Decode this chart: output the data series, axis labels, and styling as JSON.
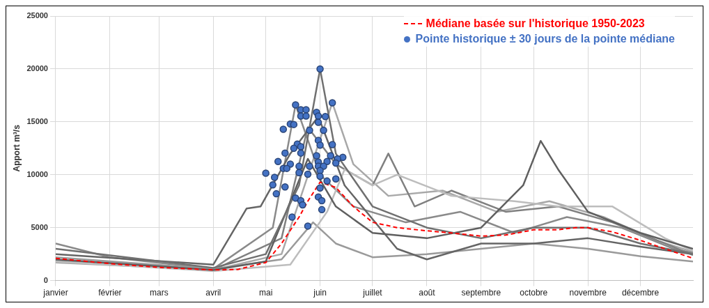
{
  "chart_data": {
    "type": "line",
    "ylabel": "Apport m³/s",
    "xlim": [
      "--01-01",
      "--12-31"
    ],
    "xticks": [
      {
        "value": "--01-01",
        "label": "janvier"
      },
      {
        "value": "--02-01",
        "label": "février"
      },
      {
        "value": "--03-01",
        "label": "mars"
      },
      {
        "value": "--04-01",
        "label": "avril"
      },
      {
        "value": "--05-01",
        "label": "mai"
      },
      {
        "value": "--06-01",
        "label": "juin"
      },
      {
        "value": "--07-01",
        "label": "juillet"
      },
      {
        "value": "--08-01",
        "label": "août"
      },
      {
        "value": "--09-01",
        "label": "septembre"
      },
      {
        "value": "--10-01",
        "label": "octobre"
      },
      {
        "value": "--11-01",
        "label": "novembre"
      },
      {
        "value": "--12-01",
        "label": "décembre"
      }
    ],
    "ylim": [
      0,
      25000
    ],
    "yticks": [
      0,
      5000,
      10000,
      15000,
      20000,
      25000
    ],
    "grid": true,
    "legend": "top right",
    "series": [
      {
        "type": "line",
        "color": "#707070",
        "marker": "none",
        "x": [
          "--01-01",
          "--04-01",
          "--05-01",
          "--05-20",
          "--06-01",
          "--06-10",
          "--07-01",
          "--08-01",
          "--09-01",
          "--10-01",
          "--11-01",
          "--12-01",
          "--12-31"
        ],
        "values": [
          3000,
          1200,
          2500,
          9000,
          20000,
          12000,
          7000,
          5000,
          4000,
          5000,
          5000,
          3500,
          2500
        ]
      },
      {
        "type": "line",
        "color": "#5f5f5f",
        "marker": "none",
        "x": [
          "--01-01",
          "--04-01",
          "--05-01",
          "--05-25",
          "--06-10",
          "--07-01",
          "--08-01",
          "--09-01",
          "--09-25",
          "--10-05",
          "--10-15",
          "--11-01",
          "--12-01",
          "--12-31"
        ],
        "values": [
          2000,
          1000,
          1800,
          11500,
          7000,
          4500,
          4000,
          5000,
          9000,
          13200,
          10500,
          6500,
          4500,
          3000
        ]
      },
      {
        "type": "line",
        "color": "#656565",
        "marker": "none",
        "x": [
          "--01-01",
          "--04-01",
          "--04-20",
          "--04-28",
          "--05-15",
          "--05-31",
          "--06-15",
          "--07-15",
          "--08-01",
          "--09-01",
          "--10-01",
          "--11-01",
          "--12-01",
          "--12-31"
        ],
        "values": [
          2500,
          1500,
          6800,
          7000,
          12000,
          15500,
          9000,
          3000,
          2000,
          3500,
          3500,
          4000,
          3200,
          2500
        ]
      },
      {
        "type": "line",
        "color": "#bdbdbd",
        "marker": "none",
        "x": [
          "--01-01",
          "--04-01",
          "--05-15",
          "--06-05",
          "--06-15",
          "--07-01",
          "--07-15",
          "--08-15",
          "--09-20",
          "--10-15",
          "--11-15",
          "--12-15",
          "--12-31"
        ],
        "values": [
          1800,
          900,
          1500,
          6500,
          10500,
          9000,
          10000,
          8000,
          7500,
          7000,
          7000,
          4000,
          2800
        ]
      },
      {
        "type": "line",
        "color": "#9a9a9a",
        "marker": "none",
        "x": [
          "--01-01",
          "--04-01",
          "--05-10",
          "--05-28",
          "--06-10",
          "--07-01",
          "--08-01",
          "--09-01",
          "--10-01",
          "--11-01",
          "--12-01",
          "--12-31"
        ],
        "values": [
          2200,
          1100,
          2000,
          5500,
          3500,
          2200,
          2500,
          3000,
          3500,
          3000,
          2300,
          1800
        ]
      },
      {
        "type": "line",
        "color": "#808080",
        "marker": "none",
        "x": [
          "--01-01",
          "--04-01",
          "--05-10",
          "--05-25",
          "--06-10",
          "--07-01",
          "--07-10",
          "--07-25",
          "--08-15",
          "--09-15",
          "--10-15",
          "--11-15",
          "--12-15",
          "--12-31"
        ],
        "values": [
          1900,
          1000,
          4000,
          14500,
          11000,
          9000,
          12000,
          7000,
          8500,
          6500,
          7000,
          5500,
          3500,
          2400
        ]
      },
      {
        "type": "line",
        "color": "#8a8a8a",
        "marker": "none",
        "x": [
          "--01-01",
          "--02-01",
          "--04-01",
          "--05-05",
          "--05-18",
          "--06-01",
          "--06-20",
          "--07-20",
          "--08-20",
          "--09-20",
          "--10-20",
          "--11-20",
          "--12-20",
          "--12-31"
        ],
        "values": [
          3500,
          2200,
          1100,
          5000,
          16600,
          10000,
          7000,
          5500,
          6500,
          4500,
          6000,
          5000,
          3000,
          2600
        ]
      },
      {
        "type": "line",
        "color": "#a8a8a8",
        "marker": "none",
        "x": [
          "--01-01",
          "--04-01",
          "--05-10",
          "--06-08",
          "--06-20",
          "--07-10",
          "--08-10",
          "--09-10",
          "--10-10",
          "--11-10",
          "--12-10",
          "--12-31"
        ],
        "values": [
          1700,
          1000,
          2500,
          16800,
          11000,
          8000,
          8500,
          6500,
          7500,
          6000,
          3800,
          2700
        ]
      },
      {
        "type": "line",
        "name": "Médiane basée sur l'historique 1950-2023",
        "color": "#ff0000",
        "marker": "none",
        "line_style": "dashed",
        "x": [
          "--01-01",
          "--02-01",
          "--03-01",
          "--04-01",
          "--04-15",
          "--05-01",
          "--05-10",
          "--05-20",
          "--05-25",
          "--06-01",
          "--06-10",
          "--06-20",
          "--07-01",
          "--07-15",
          "--08-01",
          "--08-15",
          "--09-01",
          "--09-15",
          "--09-25",
          "--10-01",
          "--10-15",
          "--10-25",
          "--11-01",
          "--11-15",
          "--12-01",
          "--12-15",
          "--12-31"
        ],
        "values": [
          2100,
          1600,
          1250,
          1000,
          1050,
          1700,
          3500,
          6000,
          7500,
          9300,
          8800,
          7000,
          5500,
          5000,
          4700,
          4500,
          4200,
          4300,
          4600,
          4800,
          4800,
          5000,
          5000,
          4600,
          3800,
          3000,
          2100
        ]
      },
      {
        "type": "scatter",
        "name": "Pointe historique ± 30 jours de la pointe médiane",
        "color": "#4472c4",
        "marker": "circle",
        "x": [
          "--06-01",
          "--06-08",
          "--05-18",
          "--05-21",
          "--05-24",
          "--05-30",
          "--05-21",
          "--05-24",
          "--05-31",
          "--06-04",
          "--05-31",
          "--05-15",
          "--05-17",
          "--05-11",
          "--05-26",
          "--06-03",
          "--05-31",
          "--05-19",
          "--05-17",
          "--05-21",
          "--06-01",
          "--06-08",
          "--05-21",
          "--05-12",
          "--05-30",
          "--06-07",
          "--06-14",
          "--06-11",
          "--05-08",
          "--05-31",
          "--06-05",
          "--05-15",
          "--06-10",
          "--05-11",
          "--05-20",
          "--05-26",
          "--05-31",
          "--06-03",
          "--05-13",
          "--05-20",
          "--05-25",
          "--06-01",
          "--05-01",
          "--05-06",
          "--06-10",
          "--06-01",
          "--06-05",
          "--05-05",
          "--05-12",
          "--06-01",
          "--05-07",
          "--05-18",
          "--05-31",
          "--05-21",
          "--05-22",
          "--06-02",
          "--06-02",
          "--05-16",
          "--05-25"
        ],
        "values": [
          20000,
          16800,
          16600,
          16150,
          16150,
          15900,
          15550,
          15550,
          15550,
          15500,
          14950,
          14800,
          14750,
          14300,
          14200,
          14200,
          13250,
          12900,
          12500,
          12650,
          12800,
          12850,
          12050,
          12050,
          11800,
          11800,
          11650,
          11500,
          11250,
          11200,
          11250,
          11000,
          11100,
          10600,
          10800,
          10800,
          10800,
          10800,
          10600,
          10200,
          10050,
          10400,
          10150,
          9750,
          9600,
          9850,
          9400,
          9050,
          8850,
          8750,
          8200,
          7800,
          7900,
          7550,
          7150,
          7550,
          6700,
          6000,
          5150
        ]
      }
    ]
  }
}
